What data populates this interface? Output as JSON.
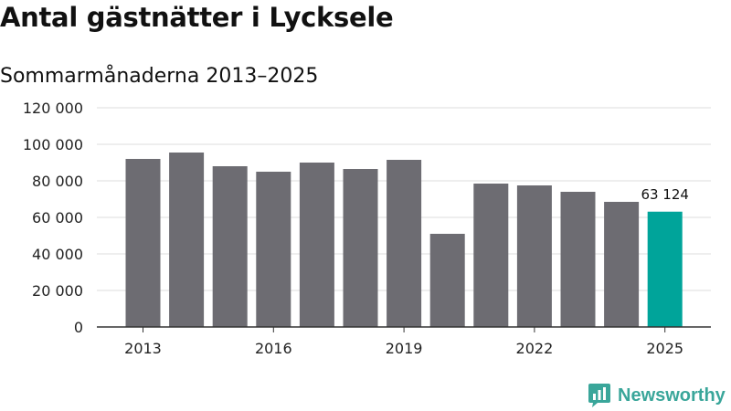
{
  "title": "Antal gästnätter i Lycksele",
  "subtitle": "Sommarmånaderna 2013–2025",
  "brand": {
    "name": "Newsworthy",
    "icon": "newsworthy-logo-icon",
    "color": "#3aa69a"
  },
  "chart_data": {
    "type": "bar",
    "categories": [
      "2013",
      "2014",
      "2015",
      "2016",
      "2017",
      "2018",
      "2019",
      "2020",
      "2021",
      "2022",
      "2023",
      "2024",
      "2025"
    ],
    "values": [
      92000,
      95500,
      88000,
      85000,
      90000,
      86500,
      91500,
      51000,
      78500,
      77500,
      74000,
      68500,
      63124
    ],
    "x_tick_labels": [
      "2013",
      "2016",
      "2019",
      "2022",
      "2025"
    ],
    "y_ticks": [
      0,
      20000,
      40000,
      60000,
      80000,
      100000,
      120000
    ],
    "y_tick_labels": [
      "0",
      "20 000",
      "40 000",
      "60 000",
      "80 000",
      "100 000",
      "120 000"
    ],
    "ylim": [
      0,
      120000
    ],
    "grid": true,
    "highlight": {
      "index": 12,
      "label": "63 124"
    },
    "colors": {
      "bar": "#6d6c72",
      "highlight": "#00a49a",
      "grid": "#dddddd",
      "axis": "#333333"
    }
  }
}
